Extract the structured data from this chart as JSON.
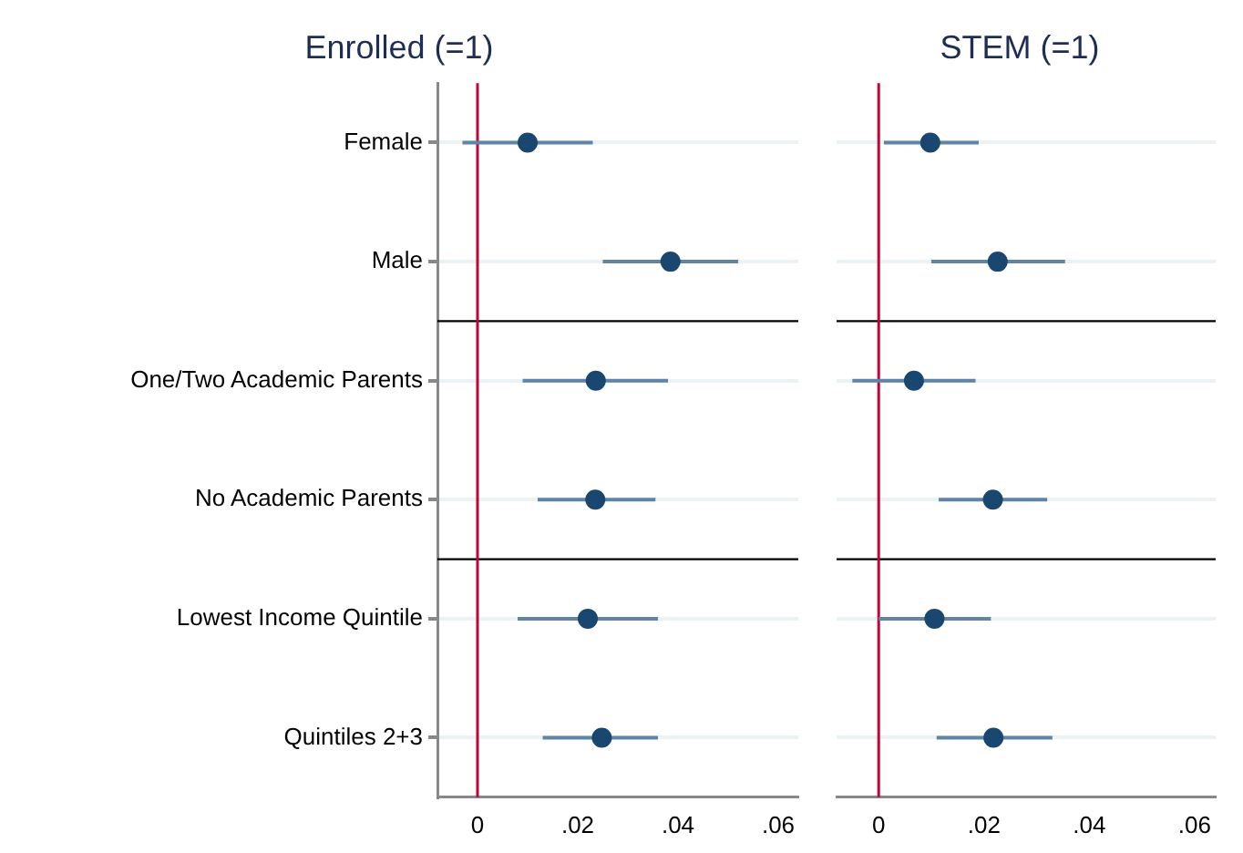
{
  "chart_data": [
    {
      "type": "scatter",
      "orientation": "horizontal",
      "title": "Enrolled (=1)",
      "categories": [
        "Female",
        "Male",
        "One/Two Academic Parents",
        "No Academic Parents",
        "Lowest Income Quintile",
        "Quintiles 2+3"
      ],
      "series": [
        {
          "color": "#1a476f",
          "values": [
            0.01,
            0.0385,
            0.0236,
            0.0235,
            0.022,
            0.0248
          ],
          "errors": [
            [
              -0.003,
              0.023
            ],
            [
              0.025,
              0.052
            ],
            [
              0.009,
              0.038
            ],
            [
              0.012,
              0.0355
            ],
            [
              0.008,
              0.036
            ],
            [
              0.013,
              0.036
            ]
          ]
        }
      ],
      "xlim": [
        -0.008,
        0.064
      ],
      "xticks": [
        0,
        {
          "value": 0.02,
          "label": ".02"
        },
        {
          "value": 0.04,
          "label": ".04"
        },
        {
          "value": 0.06,
          "label": ".06"
        }
      ],
      "ref_lines": [
        {
          "axis": "x",
          "value": 0,
          "color": "#c10534"
        }
      ],
      "grid": "y",
      "marker": "circle"
    },
    {
      "type": "scatter",
      "orientation": "horizontal",
      "title": "STEM (=1)",
      "categories": [
        null,
        null,
        null,
        null,
        null,
        null
      ],
      "series": [
        {
          "color": "#1a476f",
          "values": [
            0.0098,
            0.0226,
            0.0067,
            0.0217,
            0.0106,
            0.0218
          ],
          "errors": [
            [
              0.001,
              0.019
            ],
            [
              0.01,
              0.0354
            ],
            [
              -0.005,
              0.0184
            ],
            [
              0.0114,
              0.032
            ],
            [
              0.0,
              0.0213
            ],
            [
              0.011,
              0.033
            ]
          ]
        }
      ],
      "xlim": [
        -0.008,
        0.064
      ],
      "xticks": [
        0,
        {
          "value": 0.02,
          "label": ".02"
        },
        {
          "value": 0.04,
          "label": ".04"
        },
        {
          "value": 0.06,
          "label": ".06"
        }
      ],
      "ref_lines": [
        {
          "axis": "x",
          "value": 0,
          "color": "#c10534"
        }
      ],
      "grid": "y",
      "marker": "circle",
      "tick_labels": "x"
    }
  ]
}
